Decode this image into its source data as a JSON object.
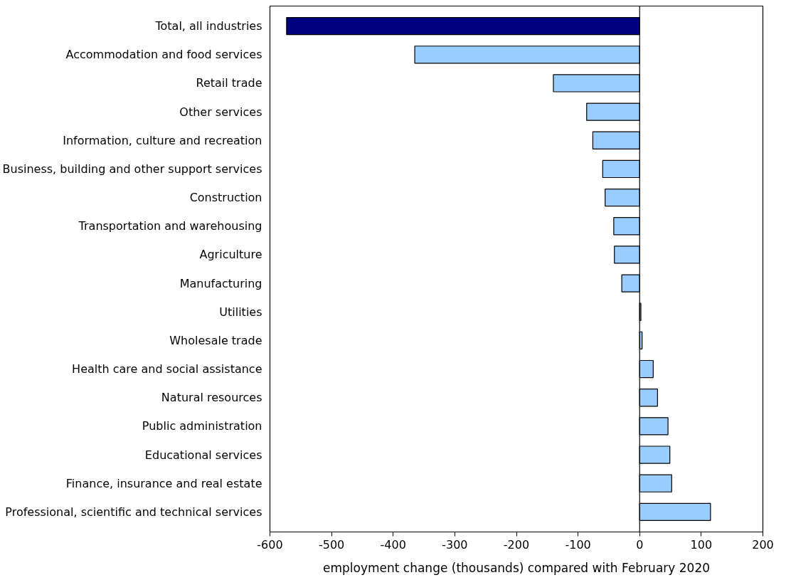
{
  "chart_data": {
    "type": "bar",
    "orientation": "horizontal",
    "xlabel": "employment change (thousands) compared with February 2020",
    "categories": [
      "Total, all industries",
      "Accommodation and food services",
      "Retail trade",
      "Other services",
      "Information, culture and recreation",
      "Business, building and other support services",
      "Construction",
      "Transportation and warehousing",
      "Agriculture",
      "Manufacturing",
      "Utilities",
      "Wholesale trade",
      "Health care and social assistance",
      "Natural resources",
      "Public administration",
      "Educational services",
      "Finance, insurance and real estate",
      "Professional, scientific and technical services"
    ],
    "values": [
      -573,
      -365,
      -140,
      -86,
      -76,
      -60,
      -56,
      -42,
      -41,
      -29,
      2,
      4,
      22,
      29,
      46,
      49,
      52,
      115
    ],
    "colors": [
      "#000080",
      "#99ccff",
      "#99ccff",
      "#99ccff",
      "#99ccff",
      "#99ccff",
      "#99ccff",
      "#99ccff",
      "#99ccff",
      "#99ccff",
      "#99ccff",
      "#99ccff",
      "#99ccff",
      "#99ccff",
      "#99ccff",
      "#99ccff",
      "#99ccff",
      "#99ccff"
    ],
    "xlim": [
      -600,
      200
    ],
    "xticks": [
      -600,
      -500,
      -400,
      -300,
      -200,
      -100,
      0,
      100,
      200
    ],
    "ref_lines": [
      {
        "axis": "x",
        "value": 0,
        "color": "#000000"
      }
    ],
    "grid": false
  }
}
